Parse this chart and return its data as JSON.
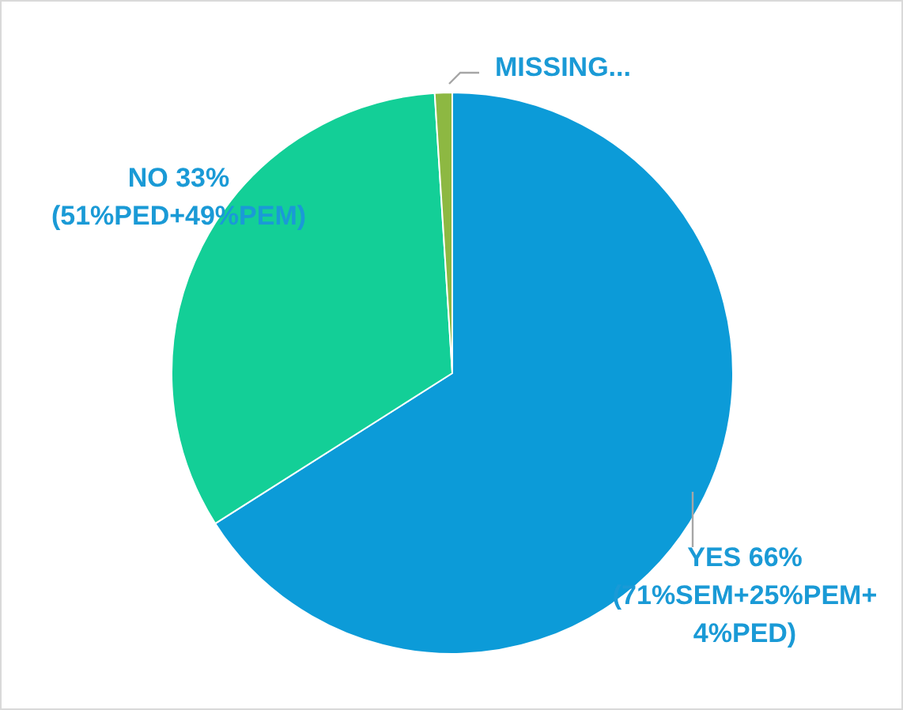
{
  "chart_data": {
    "type": "pie",
    "categories": [
      "YES 66% (71%SEM+25%PEM+4%PED)",
      "NO 33% (51%PED+49%PEM)",
      "MISSING..."
    ],
    "values": [
      66,
      33,
      1
    ],
    "colors": [
      "#0c9bd8",
      "#13cf97",
      "#8db842"
    ],
    "legend": false
  }
}
